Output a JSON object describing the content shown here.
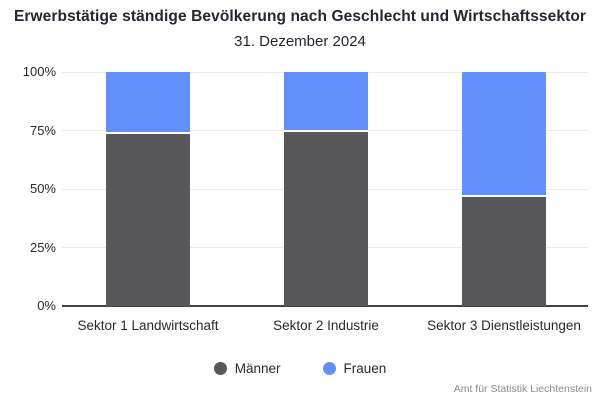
{
  "header": {
    "title": "Erwerbstätige ständige Bevölkerung nach Geschlecht und Wirtschaftssektor",
    "subtitle": "31. Dezember 2024"
  },
  "footer": {
    "source": "Amt für Statistik Liechtenstein"
  },
  "colors": {
    "maenner": "#58585B",
    "frauen": "#6290FA",
    "grid": "#EBEBED",
    "axis": "#424242",
    "text": "#23272F",
    "source_text": "#8C8C8C",
    "segment_gap": "#FFFFFF"
  },
  "chart_data": {
    "type": "bar",
    "stacked": true,
    "percent_stacked": true,
    "title": "Erwerbstätige ständige Bevölkerung nach Geschlecht und Wirtschaftssektor",
    "subtitle": "31. Dezember 2024",
    "categories": [
      "Sektor 1 Landwirtschaft",
      "Sektor 2 Industrie",
      "Sektor 3 Dienstleistungen"
    ],
    "series": [
      {
        "name": "Männer",
        "color": "#58585B",
        "values": [
          73.5,
          74.5,
          46.5
        ]
      },
      {
        "name": "Frauen",
        "color": "#6290FA",
        "values": [
          26.5,
          25.5,
          53.5
        ]
      }
    ],
    "xlabel": "",
    "ylabel": "",
    "ylim": [
      0,
      100
    ],
    "yticks": [
      "0%",
      "25%",
      "50%",
      "75%",
      "100%"
    ],
    "ytick_values": [
      0,
      25,
      50,
      75,
      100
    ],
    "grid": true,
    "legend_position": "bottom",
    "source": "Amt für Statistik Liechtenstein"
  }
}
